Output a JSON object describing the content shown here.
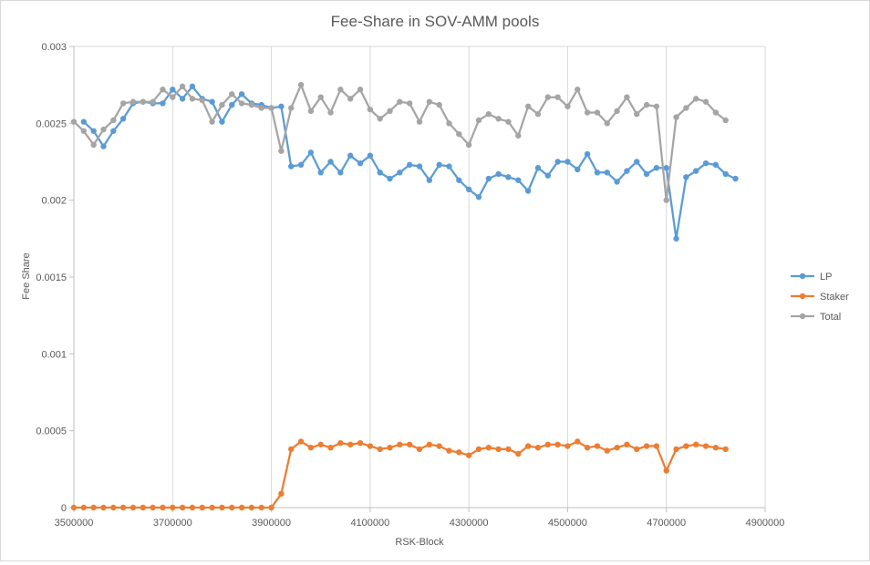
{
  "chart_data": {
    "type": "line",
    "title": "Fee-Share in SOV-AMM pools",
    "xlabel": "RSK-Block",
    "ylabel": "Fee Share",
    "xlim": [
      3500000,
      4900000
    ],
    "ylim": [
      0,
      0.003
    ],
    "xticks": [
      3500000,
      3700000,
      3900000,
      4100000,
      4300000,
      4500000,
      4700000,
      4900000
    ],
    "yticks": [
      0,
      0.0005,
      0.001,
      0.0015,
      0.002,
      0.0025,
      0.003
    ],
    "xtick_labels": [
      "3500000",
      "3700000",
      "3900000",
      "4100000",
      "4300000",
      "4500000",
      "4700000",
      "4900000"
    ],
    "ytick_labels": [
      "0",
      "0.0005",
      "0.001",
      "0.0015",
      "0.002",
      "0.0025",
      "0.003"
    ],
    "grid": "vertical",
    "legend_position": "right",
    "series": [
      {
        "name": "LP",
        "color": "#5b9bd5",
        "x": [
          3520000,
          3540000,
          3560000,
          3580000,
          3600000,
          3620000,
          3640000,
          3660000,
          3680000,
          3700000,
          3720000,
          3740000,
          3760000,
          3780000,
          3800000,
          3820000,
          3840000,
          3860000,
          3880000,
          3900000,
          3920000,
          3940000,
          3960000,
          3980000,
          4000000,
          4020000,
          4040000,
          4060000,
          4080000,
          4100000,
          4120000,
          4140000,
          4160000,
          4180000,
          4200000,
          4220000,
          4240000,
          4260000,
          4280000,
          4300000,
          4320000,
          4340000,
          4360000,
          4380000,
          4400000,
          4420000,
          4440000,
          4460000,
          4480000,
          4500000,
          4520000,
          4540000,
          4560000,
          4580000,
          4600000,
          4620000,
          4640000,
          4660000,
          4680000,
          4700000,
          4720000,
          4740000,
          4760000,
          4780000,
          4800000,
          4820000,
          4840000
        ],
        "values": [
          0.00251,
          0.00245,
          0.00235,
          0.00245,
          0.00253,
          0.00263,
          0.00264,
          0.00263,
          0.00263,
          0.00272,
          0.00266,
          0.00274,
          0.00266,
          0.00264,
          0.00251,
          0.00262,
          0.00269,
          0.00263,
          0.00262,
          0.0026,
          0.00261,
          0.00222,
          0.00223,
          0.00231,
          0.00218,
          0.00225,
          0.00218,
          0.00229,
          0.00224,
          0.00229,
          0.00218,
          0.00214,
          0.00218,
          0.00223,
          0.00222,
          0.00213,
          0.00223,
          0.00222,
          0.00213,
          0.00207,
          0.00202,
          0.00214,
          0.00217,
          0.00215,
          0.00213,
          0.00206,
          0.00221,
          0.00216,
          0.00225,
          0.00225,
          0.0022,
          0.0023,
          0.00218,
          0.00218,
          0.00212,
          0.00219,
          0.00225,
          0.00217,
          0.00221,
          0.00221,
          0.00175,
          0.00215,
          0.00219,
          0.00224,
          0.00223,
          0.00217,
          0.00214
        ]
      },
      {
        "name": "Staker",
        "color": "#ed7d31",
        "x": [
          3500000,
          3520000,
          3540000,
          3560000,
          3580000,
          3600000,
          3620000,
          3640000,
          3660000,
          3680000,
          3700000,
          3720000,
          3740000,
          3760000,
          3780000,
          3800000,
          3820000,
          3840000,
          3860000,
          3880000,
          3900000,
          3920000,
          3940000,
          3960000,
          3980000,
          4000000,
          4020000,
          4040000,
          4060000,
          4080000,
          4100000,
          4120000,
          4140000,
          4160000,
          4180000,
          4200000,
          4220000,
          4240000,
          4260000,
          4280000,
          4300000,
          4320000,
          4340000,
          4360000,
          4380000,
          4400000,
          4420000,
          4440000,
          4460000,
          4480000,
          4500000,
          4520000,
          4540000,
          4560000,
          4580000,
          4600000,
          4620000,
          4640000,
          4660000,
          4680000,
          4700000,
          4720000,
          4740000,
          4760000,
          4780000,
          4800000,
          4820000
        ],
        "values": [
          0,
          0,
          0,
          0,
          0,
          0,
          0,
          0,
          0,
          0,
          0,
          0,
          0,
          0,
          0,
          0,
          0,
          0,
          0,
          0,
          0,
          9e-05,
          0.00038,
          0.00043,
          0.00039,
          0.00041,
          0.00039,
          0.00042,
          0.00041,
          0.00042,
          0.0004,
          0.00038,
          0.00039,
          0.00041,
          0.00041,
          0.00038,
          0.00041,
          0.0004,
          0.00037,
          0.00036,
          0.00034,
          0.00038,
          0.00039,
          0.00038,
          0.00038,
          0.00035,
          0.0004,
          0.00039,
          0.00041,
          0.00041,
          0.0004,
          0.00043,
          0.00039,
          0.0004,
          0.00037,
          0.00039,
          0.00041,
          0.00038,
          0.0004,
          0.0004,
          0.00024,
          0.00038,
          0.0004,
          0.00041,
          0.0004,
          0.00039,
          0.00038
        ]
      },
      {
        "name": "Total",
        "color": "#a5a5a5",
        "x": [
          3500000,
          3520000,
          3540000,
          3560000,
          3580000,
          3600000,
          3620000,
          3640000,
          3660000,
          3680000,
          3700000,
          3720000,
          3740000,
          3760000,
          3780000,
          3800000,
          3820000,
          3840000,
          3860000,
          3880000,
          3900000,
          3920000,
          3940000,
          3960000,
          3980000,
          4000000,
          4020000,
          4040000,
          4060000,
          4080000,
          4100000,
          4120000,
          4140000,
          4160000,
          4180000,
          4200000,
          4220000,
          4240000,
          4260000,
          4280000,
          4300000,
          4320000,
          4340000,
          4360000,
          4380000,
          4400000,
          4420000,
          4440000,
          4460000,
          4480000,
          4500000,
          4520000,
          4540000,
          4560000,
          4580000,
          4600000,
          4620000,
          4640000,
          4660000,
          4680000,
          4700000,
          4720000,
          4740000,
          4760000,
          4780000,
          4800000,
          4820000
        ],
        "values": [
          0.00251,
          0.00245,
          0.00236,
          0.00246,
          0.00252,
          0.00263,
          0.00264,
          0.00264,
          0.00264,
          0.00272,
          0.00267,
          0.00274,
          0.00266,
          0.00265,
          0.00251,
          0.00262,
          0.00269,
          0.00263,
          0.00262,
          0.0026,
          0.0026,
          0.00232,
          0.0026,
          0.00275,
          0.00258,
          0.00267,
          0.00257,
          0.00272,
          0.00266,
          0.00272,
          0.00259,
          0.00253,
          0.00258,
          0.00264,
          0.00263,
          0.00251,
          0.00264,
          0.00262,
          0.0025,
          0.00243,
          0.00236,
          0.00252,
          0.00256,
          0.00253,
          0.00251,
          0.00242,
          0.00261,
          0.00256,
          0.00267,
          0.00267,
          0.00261,
          0.00272,
          0.00257,
          0.00257,
          0.0025,
          0.00258,
          0.00267,
          0.00256,
          0.00262,
          0.00261,
          0.002,
          0.00254,
          0.0026,
          0.00266,
          0.00264,
          0.00257,
          0.00252
        ]
      }
    ]
  }
}
